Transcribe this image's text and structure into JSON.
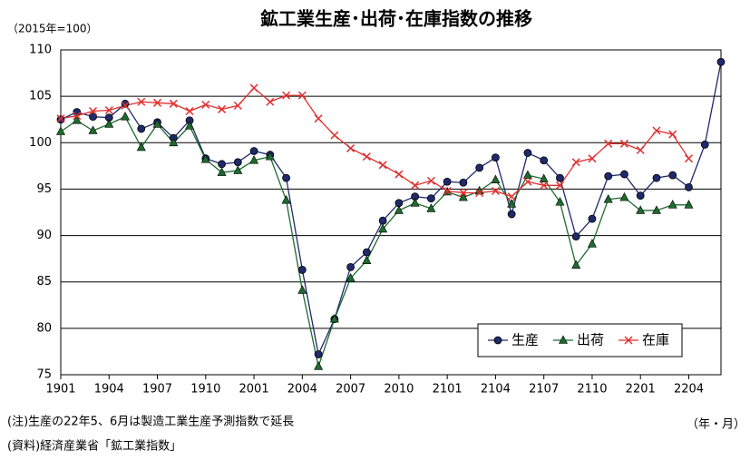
{
  "chart_data": {
    "type": "line",
    "title": "鉱工業生産･出荷･在庫指数の推移",
    "y_label": "（2015年=100）",
    "x_label": "（年・月）",
    "notes": [
      "(注)生産の22年5、6月は製造工業生産予測指数で延長",
      "(資料)経済産業省「鉱工業指数」"
    ],
    "categories": [
      "1901",
      null,
      null,
      "1904",
      null,
      null,
      "1907",
      null,
      null,
      "1910",
      null,
      null,
      "2001",
      null,
      null,
      "2004",
      null,
      null,
      "2007",
      null,
      null,
      "2010",
      null,
      null,
      "2101",
      null,
      null,
      "2104",
      null,
      null,
      "2107",
      null,
      null,
      "2110",
      null,
      null,
      "2201",
      null,
      null,
      "2204",
      null,
      null
    ],
    "series": [
      {
        "name": "生産",
        "color": "#1f2a6b",
        "marker": "circle",
        "values": [
          102.5,
          103.3,
          102.8,
          102.7,
          104.2,
          101.5,
          102.2,
          100.5,
          102.4,
          98.3,
          97.7,
          97.9,
          99.1,
          98.7,
          96.2,
          86.3,
          77.2,
          81.0,
          86.6,
          88.2,
          91.6,
          93.5,
          94.2,
          94.0,
          95.8,
          95.7,
          97.3,
          98.4,
          92.3,
          98.9,
          98.1,
          96.2,
          89.9,
          91.8,
          96.4,
          96.6,
          94.3,
          96.2,
          96.5,
          95.2,
          99.8,
          108.7
        ]
      },
      {
        "name": "出荷",
        "color": "#1e6b2e",
        "marker": "triangle",
        "values": [
          101.2,
          102.4,
          101.3,
          102.0,
          102.8,
          99.5,
          102.0,
          100.0,
          101.8,
          98.2,
          96.8,
          97.0,
          98.1,
          98.5,
          93.8,
          84.1,
          75.9,
          81.0,
          85.4,
          87.3,
          90.7,
          92.7,
          93.5,
          92.9,
          94.7,
          94.1,
          94.8,
          96.0,
          93.4,
          96.5,
          96.1,
          93.6,
          86.8,
          89.1,
          93.9,
          94.1,
          92.7,
          92.7,
          93.3,
          93.3,
          null,
          null
        ]
      },
      {
        "name": "在庫",
        "color": "#e03030",
        "marker": "x",
        "values": [
          102.6,
          102.9,
          103.4,
          103.5,
          104.0,
          104.4,
          104.3,
          104.2,
          103.4,
          104.1,
          103.6,
          104.0,
          105.9,
          104.4,
          105.1,
          105.1,
          102.6,
          100.8,
          99.4,
          98.5,
          97.6,
          96.6,
          95.4,
          95.9,
          94.8,
          94.6,
          94.6,
          94.8,
          94.2,
          95.8,
          95.4,
          95.4,
          97.9,
          98.3,
          99.9,
          99.9,
          99.2,
          101.3,
          100.9,
          98.3,
          null,
          null
        ]
      }
    ],
    "ylim": [
      75,
      110
    ],
    "yticks": [
      75,
      80,
      85,
      90,
      95,
      100,
      105,
      110
    ],
    "grid": true
  }
}
